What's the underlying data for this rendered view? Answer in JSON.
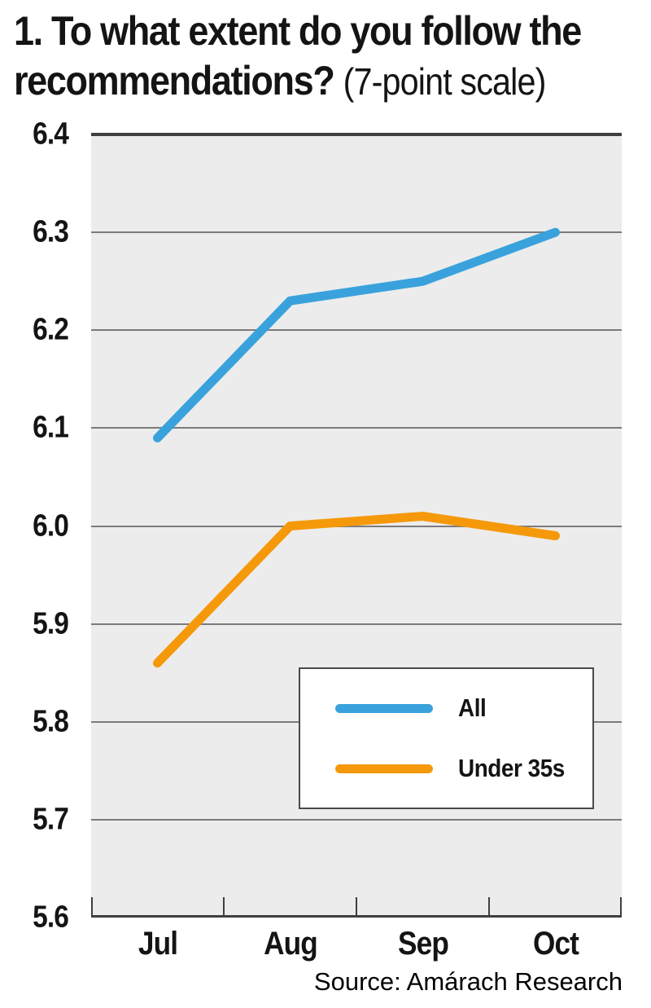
{
  "title": {
    "line1": "1. To what extent do you follow the",
    "line2_bold": "recommendations?",
    "line2_light": "(7-point scale)"
  },
  "source": "Source: Amárach Research",
  "chart_data": {
    "type": "line",
    "categories": [
      "Jul",
      "Aug",
      "Sep",
      "Oct"
    ],
    "series": [
      {
        "name": "All",
        "color": "#39A2DC",
        "values": [
          6.09,
          6.23,
          6.25,
          6.3
        ]
      },
      {
        "name": "Under 35s",
        "color": "#F5990B",
        "values": [
          5.86,
          6.0,
          6.01,
          5.99
        ]
      }
    ],
    "title": "1. To what extent do you follow the recommendations? (7-point scale)",
    "xlabel": "",
    "ylabel": "",
    "ylim": [
      5.6,
      6.4
    ],
    "ytick_step": 0.1,
    "grid": true,
    "legend_position": "bottom-right",
    "colors": {
      "plot_bg": "#ECECEC",
      "gridline": "#7B7B7B",
      "axis": "#3F3F3F",
      "text": "#141414"
    }
  }
}
